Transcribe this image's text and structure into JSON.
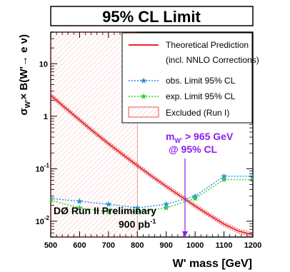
{
  "chart_data": {
    "type": "line",
    "title": "95% CL Limit",
    "xlabel": "W' mass [GeV]",
    "ylabel": {
      "base": "σ",
      "sub": "W'",
      "rest": "× B(W'→ e ν)"
    },
    "x_scale": "linear",
    "y_scale": "log",
    "xlim": [
      500,
      1200
    ],
    "ylim": [
      0.005,
      40
    ],
    "x_ticks": [
      500,
      600,
      700,
      800,
      900,
      1000,
      1100,
      1200
    ],
    "y_ticks": [
      {
        "value": 0.01,
        "base": "10",
        "exp": "-2"
      },
      {
        "value": 0.1,
        "base": "10",
        "exp": "-1"
      },
      {
        "value": 1,
        "base": "1",
        "exp": ""
      },
      {
        "value": 10,
        "base": "10",
        "exp": ""
      }
    ],
    "grid": false,
    "legend_position": "top-right",
    "series": [
      {
        "name": "Theoretical Prediction",
        "name2": "(incl. NNLO Corrections)",
        "style": "solid",
        "color": "#e8262b",
        "x": [
          500,
          550,
          600,
          650,
          700,
          750,
          800,
          850,
          900,
          950,
          1000,
          1050,
          1100,
          1150,
          1200
        ],
        "y": [
          2.5,
          1.45,
          0.85,
          0.5,
          0.3,
          0.185,
          0.115,
          0.072,
          0.046,
          0.03,
          0.0195,
          0.013,
          0.0088,
          0.0065,
          0.0055
        ]
      },
      {
        "name": "obs. Limit 95% CL",
        "style": "dotted",
        "marker": "star",
        "color": "#1e8fe0",
        "x": [
          500,
          600,
          700,
          800,
          900,
          1000,
          1100,
          1200
        ],
        "y": [
          0.027,
          0.024,
          0.021,
          0.018,
          0.021,
          0.03,
          0.072,
          0.072
        ]
      },
      {
        "name": "exp. Limit 95% CL",
        "style": "dotted",
        "marker": "star",
        "color": "#33cc33",
        "x": [
          500,
          600,
          700,
          800,
          900,
          1000,
          1100,
          1200
        ],
        "y": [
          0.025,
          0.018,
          0.015,
          0.015,
          0.018,
          0.027,
          0.062,
          0.062
        ]
      }
    ],
    "excluded_region": {
      "label": "Excluded (Run I)",
      "color": "#e8262b",
      "x_max": 800
    },
    "annotations": {
      "mass_limit_line1": "m",
      "mass_limit_sub": "W'",
      "mass_limit_rest": " > 965 GeV",
      "mass_limit_line2": "@ 95% CL",
      "mass_limit_value": 965,
      "mass_limit_color": "#8b1cf0",
      "preliminary": "DØ Run II Preliminary",
      "lumi": "900 pb",
      "lumi_exp": "-1"
    }
  }
}
